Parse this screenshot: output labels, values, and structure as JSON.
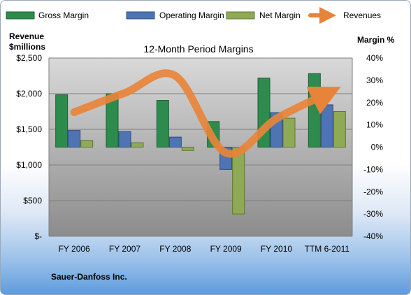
{
  "company": "Sauer-Danfoss Inc.",
  "colors": {
    "gross_margin": "#2e8b4e",
    "operating_margin": "#4f74b3",
    "net_margin": "#8faa55",
    "revenues": "#e8843a",
    "plot_top": "#d9d9d9",
    "plot_bottom": "#8c8c8c"
  },
  "chart_data": {
    "type": "bar",
    "title": "12-Month Period Margins",
    "categories": [
      "FY 2006",
      "FY 2007",
      "FY 2008",
      "FY 2009",
      "FY 2010",
      "TTM 6-2011"
    ],
    "left_axis": {
      "title_lines": [
        "Revenue",
        "$millions"
      ],
      "range": [
        0,
        2500
      ],
      "ticks": [
        0,
        500,
        1000,
        1500,
        2000,
        2500
      ],
      "tick_labels": [
        "$-",
        "$500",
        "$1,000",
        "$1,500",
        "$2,000",
        "$2,500"
      ]
    },
    "right_axis": {
      "title": "Margin %",
      "range": [
        -40,
        40
      ],
      "ticks": [
        40,
        30,
        20,
        10,
        0,
        -10,
        -20,
        -30,
        -40
      ],
      "tick_labels": [
        "40%",
        "30%",
        "20%",
        "10%",
        "0%",
        "-10%",
        "-20%",
        "-30%",
        "-40%"
      ]
    },
    "grid": true,
    "legend_position": "top",
    "series": [
      {
        "name": "Gross Margin",
        "axis": "right",
        "type": "bar",
        "values": [
          23.5,
          24,
          21,
          11.5,
          31,
          33
        ]
      },
      {
        "name": "Operating Margin",
        "axis": "right",
        "type": "bar",
        "values": [
          7.5,
          7,
          4.5,
          -10,
          15.5,
          19
        ]
      },
      {
        "name": "Net Margin",
        "axis": "right",
        "type": "bar",
        "values": [
          3,
          2,
          -1.5,
          -30,
          13,
          16
        ]
      },
      {
        "name": "Revenues",
        "axis": "left",
        "type": "line",
        "values": [
          1740,
          2010,
          2250,
          1170,
          1650,
          2000
        ]
      }
    ]
  }
}
